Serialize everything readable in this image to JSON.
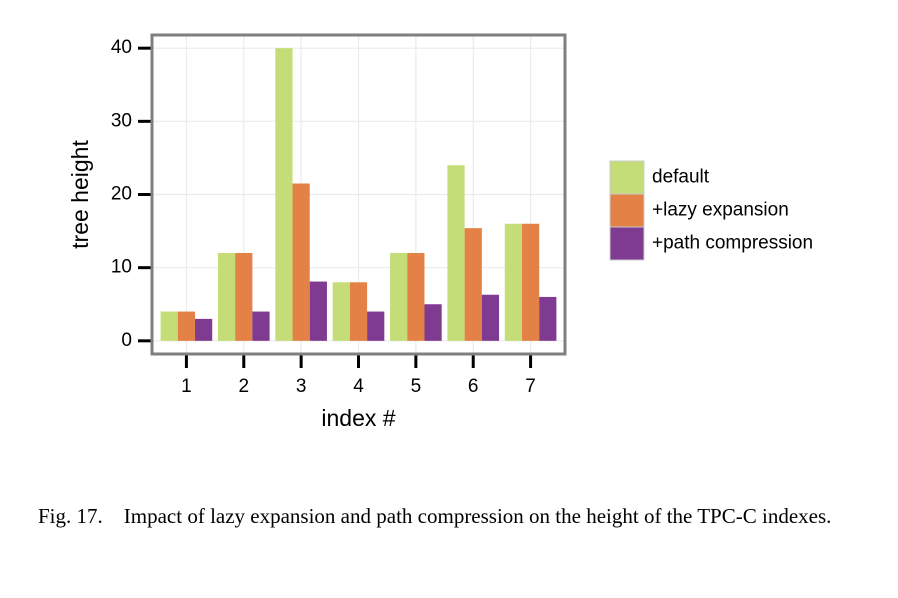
{
  "chart_data": {
    "type": "bar",
    "categories": [
      "1",
      "2",
      "3",
      "4",
      "5",
      "6",
      "7"
    ],
    "x_label": "index #",
    "y_label": "tree height",
    "series": [
      {
        "name": "default",
        "color": "#c5dd76",
        "values": [
          4,
          12,
          40,
          8,
          12,
          24,
          16
        ]
      },
      {
        "name": "+lazy expansion",
        "color": "#e38146",
        "values": [
          4,
          12,
          21.5,
          8,
          12,
          15.4,
          16
        ]
      },
      {
        "name": "+path compression",
        "color": "#7f3a92",
        "values": [
          3,
          4,
          8.1,
          4,
          5,
          6.3,
          6
        ]
      }
    ],
    "ylim": [
      -1.8,
      41.8
    ],
    "yticks": [
      0,
      10,
      20,
      30,
      40
    ],
    "grid": true,
    "legend": "right"
  },
  "caption_label": "Fig. 17.",
  "caption_text": "Impact of lazy expansion and path compression on the height of the TPC-C indexes."
}
